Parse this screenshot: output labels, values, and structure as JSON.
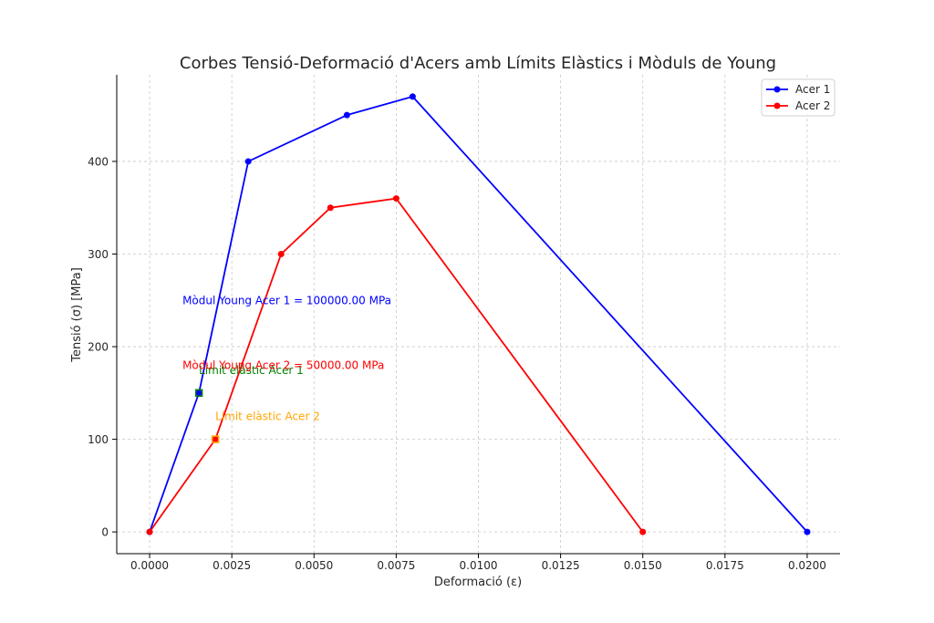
{
  "chart_data": {
    "type": "line",
    "title": "Corbes Tensió-Deformació d'Acers amb Límits Elàstics i Mòduls de Young",
    "xlabel": "Deformació (ε)",
    "ylabel": "Tensió (σ) [MPa]",
    "xlim": [
      -0.001,
      0.021
    ],
    "ylim": [
      -23.5,
      493.5
    ],
    "xticks": [
      0.0,
      0.0025,
      0.005,
      0.0075,
      0.01,
      0.0125,
      0.015,
      0.0175,
      0.02
    ],
    "xtick_labels": [
      "0.0000",
      "0.0025",
      "0.0050",
      "0.0075",
      "0.0100",
      "0.0125",
      "0.0150",
      "0.0175",
      "0.0200"
    ],
    "yticks": [
      0,
      100,
      200,
      300,
      400
    ],
    "ytick_labels": [
      "0",
      "100",
      "200",
      "300",
      "400"
    ],
    "grid": true,
    "legend_position": "top-right",
    "series": [
      {
        "name": "Acer 1",
        "color": "#0000ff",
        "x": [
          0.0,
          0.0015,
          0.003,
          0.006,
          0.008,
          0.02
        ],
        "y": [
          0,
          150,
          400,
          450,
          470,
          0
        ]
      },
      {
        "name": "Acer 2",
        "color": "#ff0000",
        "x": [
          0.0,
          0.002,
          0.004,
          0.0055,
          0.0075,
          0.015
        ],
        "y": [
          0,
          100,
          300,
          350,
          360,
          0
        ]
      }
    ],
    "elastic_limits": [
      {
        "label": "Límit elàstic Acer 1",
        "x": 0.0015,
        "y": 150,
        "marker_color": "#008000",
        "text_color": "#008000"
      },
      {
        "label": "Límit elàstic Acer 2",
        "x": 0.002,
        "y": 100,
        "marker_color": "#ffa500",
        "text_color": "#ffa500"
      }
    ],
    "annotations": [
      {
        "text": "Mòdul Young Acer 1 = 100000.00 MPa",
        "x": 0.001,
        "y": 250,
        "color": "#0000ff"
      },
      {
        "text": "Mòdul Young Acer 2 = 50000.00 MPa",
        "x": 0.001,
        "y": 180,
        "color": "#ff0000"
      }
    ]
  }
}
